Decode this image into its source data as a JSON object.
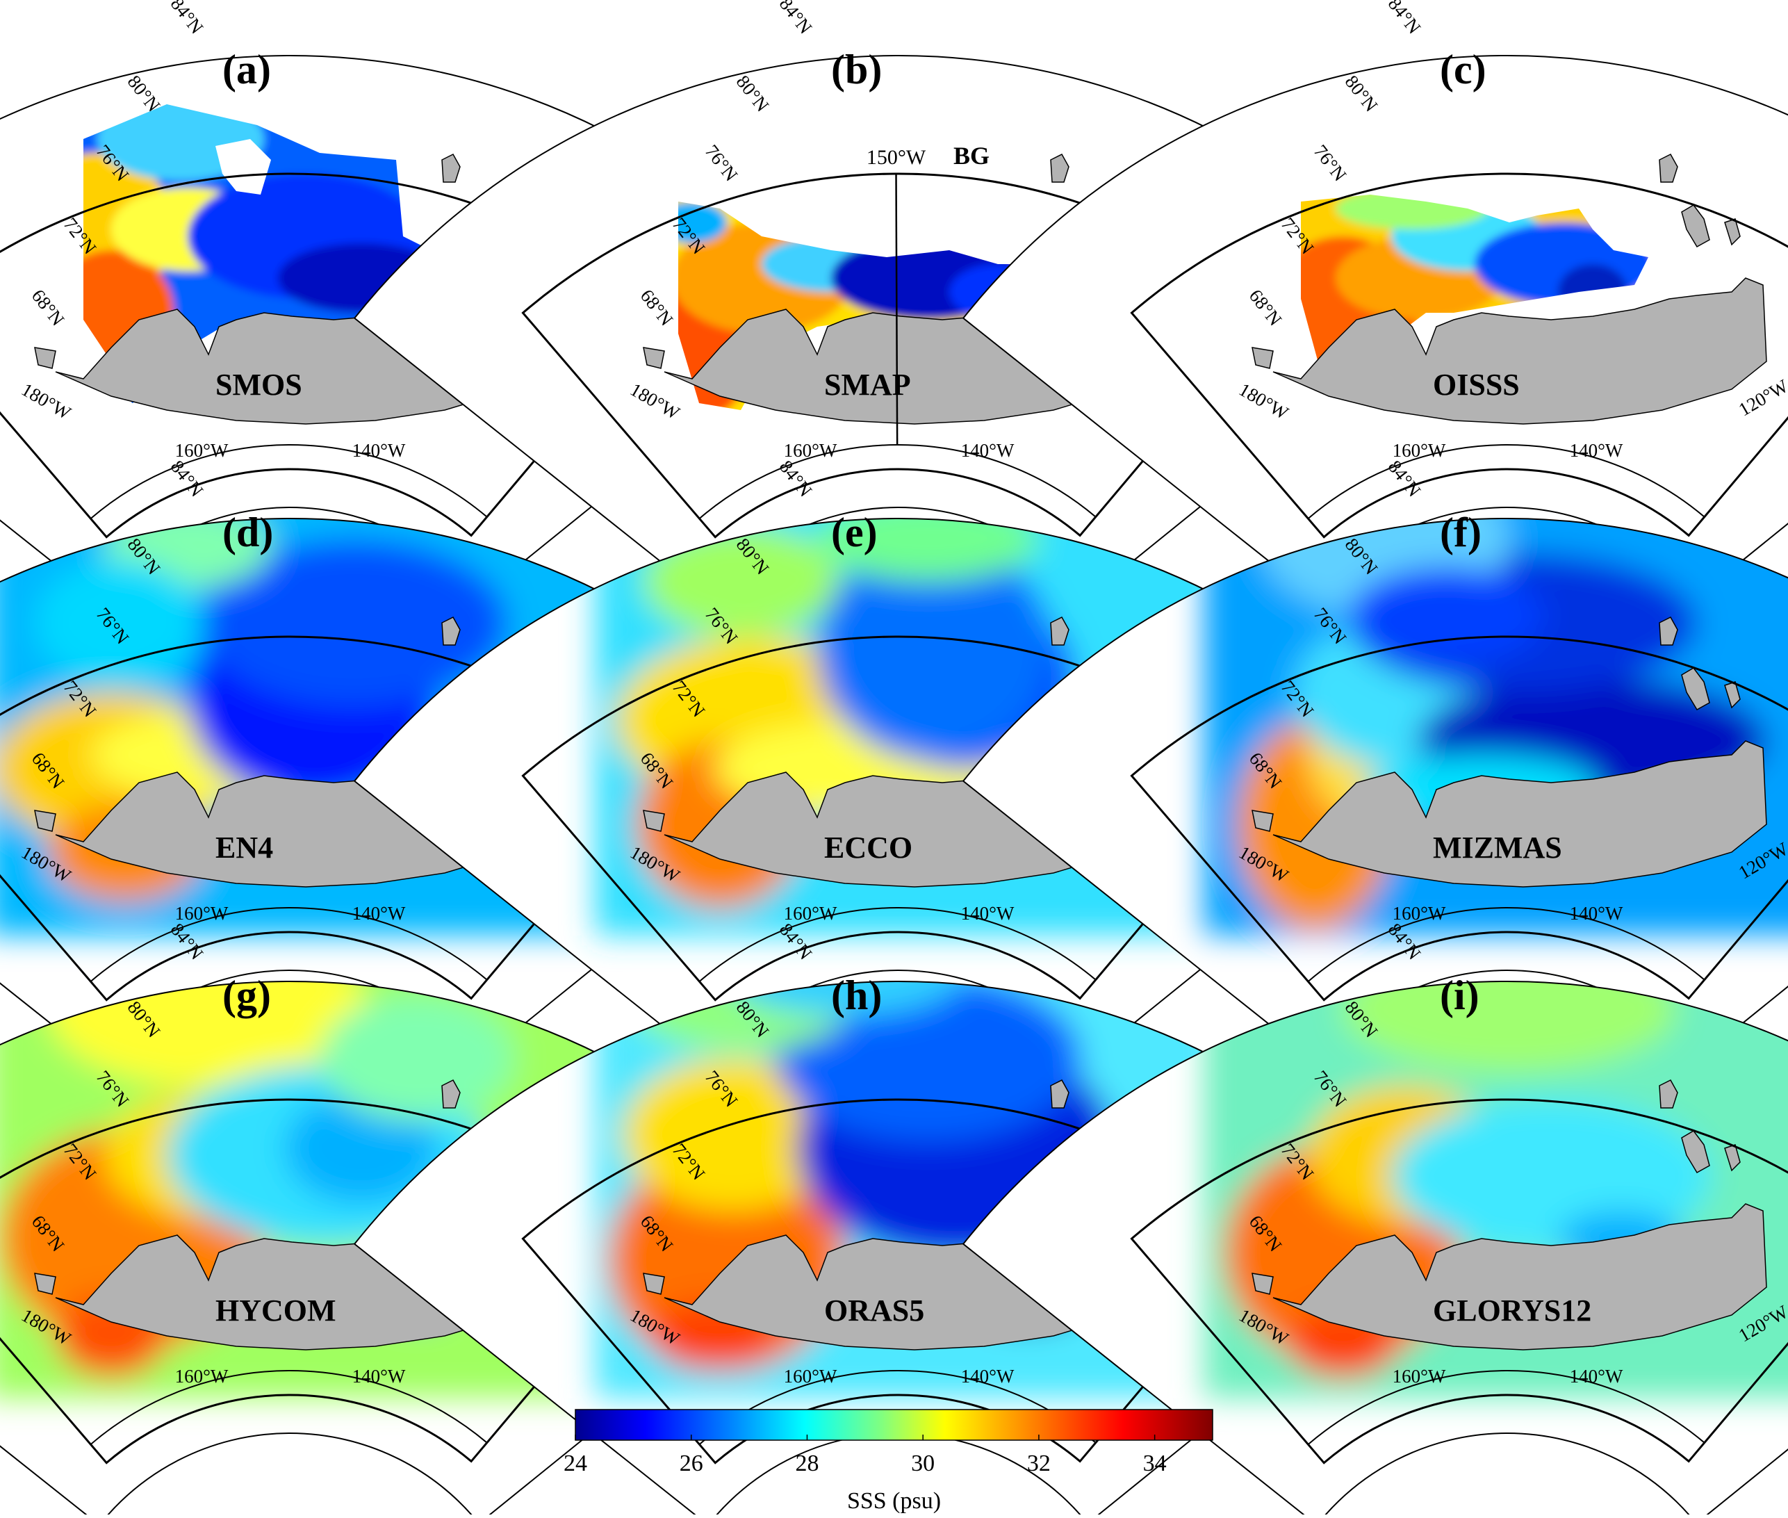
{
  "colors": {
    "land": "#b3b3b3",
    "frame": "#000000",
    "colormap": [
      "#00008f",
      "#0000ff",
      "#0080ff",
      "#00ffff",
      "#80ff80",
      "#ffff00",
      "#ff8000",
      "#ff0000",
      "#800000"
    ]
  },
  "axis_labels": {
    "lat": [
      "84°N",
      "80°N",
      "76°N",
      "72°N",
      "68°N"
    ],
    "lon_left": "180°W",
    "lon_right": "120°W",
    "lon_bottom": [
      "160°W",
      "140°W"
    ]
  },
  "annotations": {
    "meridian": "150°W",
    "region": "BG"
  },
  "panels": [
    {
      "letter": "(a)",
      "name": "SMOS",
      "coverage": "partial"
    },
    {
      "letter": "(b)",
      "name": "SMAP",
      "coverage": "partial"
    },
    {
      "letter": "(c)",
      "name": "OISSS",
      "coverage": "partial"
    },
    {
      "letter": "(d)",
      "name": "EN4",
      "coverage": "full"
    },
    {
      "letter": "(e)",
      "name": "ECCO",
      "coverage": "full"
    },
    {
      "letter": "(f)",
      "name": "MIZMAS",
      "coverage": "full"
    },
    {
      "letter": "(g)",
      "name": "HYCOM",
      "coverage": "full"
    },
    {
      "letter": "(h)",
      "name": "ORAS5",
      "coverage": "full"
    },
    {
      "letter": "(i)",
      "name": "GLORYS12",
      "coverage": "full"
    }
  ],
  "colorbar": {
    "label": "SSS (psu)",
    "min": 24,
    "max": 35,
    "ticks": [
      "24",
      "26",
      "28",
      "30",
      "32",
      "34"
    ]
  }
}
